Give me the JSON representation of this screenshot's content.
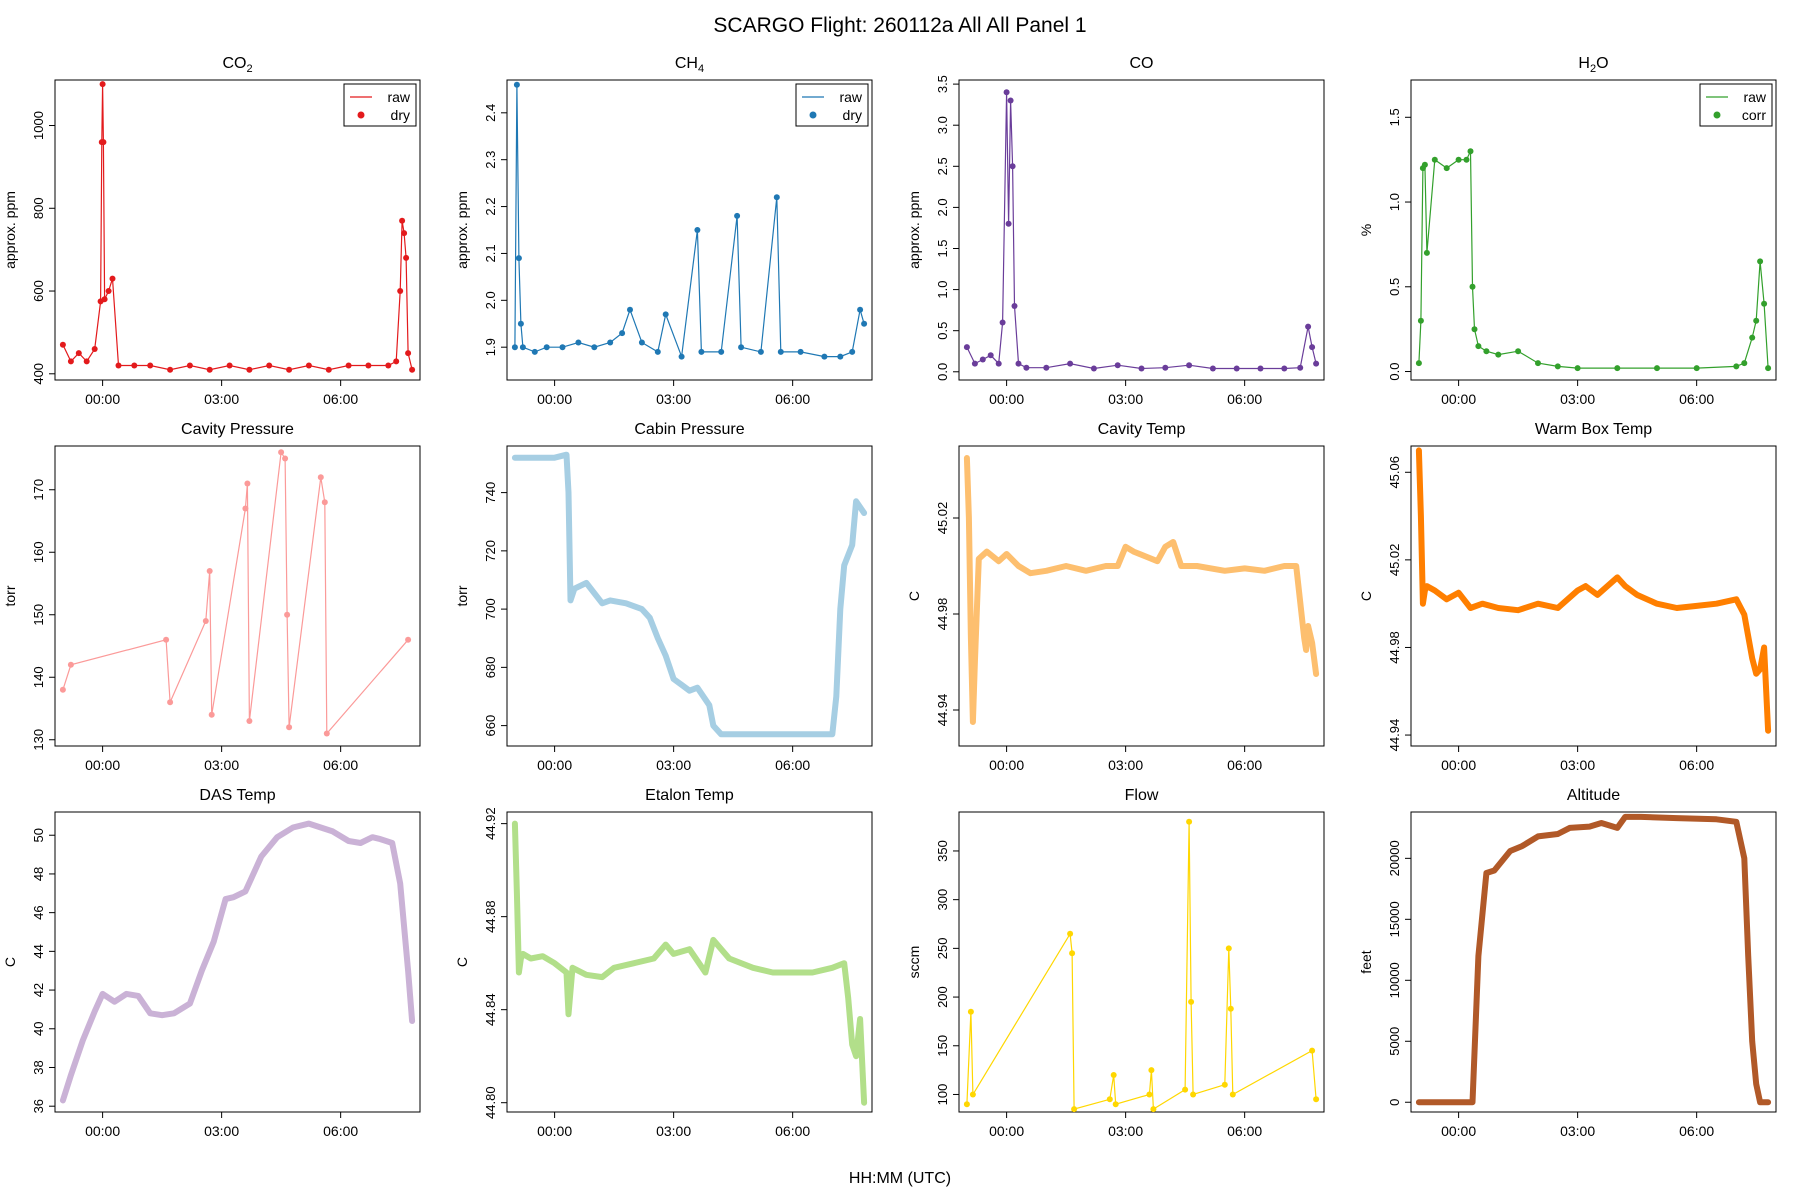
{
  "figure": {
    "title": "SCARGO Flight: 260112a  All All  Panel 1",
    "xlabel": "HH:MM (UTC)"
  },
  "chart_data": [
    {
      "id": "co2",
      "type": "scatter",
      "title": "CO",
      "title_sub": "2",
      "ylabel": "approx. ppm",
      "color": "#E31A1C",
      "ylim": [
        385,
        1110
      ],
      "yticks": [
        400,
        600,
        800,
        1000
      ],
      "xticks": [
        "00:00",
        "03:00",
        "06:00"
      ],
      "xlim": [
        -1.2,
        8.0
      ],
      "legend": [
        "raw",
        "dry"
      ],
      "x": [
        -1.0,
        -0.8,
        -0.6,
        -0.4,
        -0.2,
        -0.05,
        -0.02,
        0.0,
        0.02,
        0.05,
        0.15,
        0.25,
        0.4,
        0.8,
        1.2,
        1.7,
        2.2,
        2.7,
        3.2,
        3.7,
        4.2,
        4.7,
        5.2,
        5.7,
        6.2,
        6.7,
        7.2,
        7.4,
        7.5,
        7.55,
        7.6,
        7.65,
        7.7,
        7.8
      ],
      "y": [
        470,
        430,
        450,
        430,
        460,
        575,
        960,
        1100,
        960,
        580,
        600,
        630,
        420,
        420,
        420,
        410,
        420,
        410,
        420,
        410,
        420,
        410,
        420,
        410,
        420,
        420,
        420,
        430,
        600,
        770,
        740,
        680,
        450,
        410
      ]
    },
    {
      "id": "ch4",
      "type": "scatter",
      "title": "CH",
      "title_sub": "4",
      "ylabel": "approx. ppm",
      "color": "#1F78B4",
      "ylim": [
        1.83,
        2.47
      ],
      "yticks": [
        1.9,
        2.0,
        2.1,
        2.2,
        2.3,
        2.4
      ],
      "xticks": [
        "00:00",
        "03:00",
        "06:00"
      ],
      "xlim": [
        -1.2,
        8.0
      ],
      "legend": [
        "raw",
        "dry"
      ],
      "x": [
        -1.0,
        -0.95,
        -0.9,
        -0.85,
        -0.8,
        -0.5,
        -0.2,
        0.2,
        0.6,
        1.0,
        1.4,
        1.7,
        1.9,
        2.2,
        2.6,
        2.8,
        3.2,
        3.6,
        3.7,
        4.2,
        4.6,
        4.7,
        5.2,
        5.6,
        5.7,
        6.2,
        6.8,
        7.2,
        7.5,
        7.7,
        7.8
      ],
      "y": [
        1.9,
        2.46,
        2.09,
        1.95,
        1.9,
        1.89,
        1.9,
        1.9,
        1.91,
        1.9,
        1.91,
        1.93,
        1.98,
        1.91,
        1.89,
        1.97,
        1.88,
        2.15,
        1.89,
        1.89,
        2.18,
        1.9,
        1.89,
        2.22,
        1.89,
        1.89,
        1.88,
        1.88,
        1.89,
        1.98,
        1.95
      ]
    },
    {
      "id": "co",
      "type": "scatter",
      "title": "CO",
      "title_sub": "",
      "ylabel": "approx. ppm",
      "color": "#6A3D9A",
      "ylim": [
        -0.1,
        3.55
      ],
      "yticks": [
        0.0,
        0.5,
        1.0,
        1.5,
        2.0,
        2.5,
        3.0,
        3.5
      ],
      "xticks": [
        "00:00",
        "03:00",
        "06:00"
      ],
      "xlim": [
        -1.2,
        8.0
      ],
      "legend": [],
      "x": [
        -1.0,
        -0.8,
        -0.6,
        -0.4,
        -0.2,
        -0.1,
        0.0,
        0.05,
        0.1,
        0.15,
        0.2,
        0.3,
        0.5,
        1.0,
        1.6,
        2.2,
        2.8,
        3.4,
        4.0,
        4.6,
        5.2,
        5.8,
        6.4,
        7.0,
        7.4,
        7.6,
        7.7,
        7.8
      ],
      "y": [
        0.3,
        0.1,
        0.15,
        0.2,
        0.1,
        0.6,
        3.4,
        1.8,
        3.3,
        2.5,
        0.8,
        0.1,
        0.05,
        0.05,
        0.1,
        0.04,
        0.08,
        0.04,
        0.05,
        0.08,
        0.04,
        0.04,
        0.04,
        0.04,
        0.05,
        0.55,
        0.3,
        0.1
      ]
    },
    {
      "id": "h2o",
      "type": "scatter",
      "title": "H",
      "title_sub": "2",
      "title_tail": "O",
      "ylabel": "%",
      "color": "#33A02C",
      "ylim": [
        -0.05,
        1.72
      ],
      "yticks": [
        0.0,
        0.5,
        1.0,
        1.5
      ],
      "xticks": [
        "00:00",
        "03:00",
        "06:00"
      ],
      "xlim": [
        -1.2,
        8.0
      ],
      "legend": [
        "raw",
        "corr"
      ],
      "x": [
        -1.0,
        -0.95,
        -0.9,
        -0.85,
        -0.8,
        -0.6,
        -0.3,
        0.0,
        0.2,
        0.3,
        0.35,
        0.4,
        0.5,
        0.7,
        1.0,
        1.5,
        2.0,
        2.5,
        3.0,
        4.0,
        5.0,
        6.0,
        7.0,
        7.2,
        7.4,
        7.5,
        7.6,
        7.7,
        7.8
      ],
      "y": [
        0.05,
        0.3,
        1.2,
        1.22,
        0.7,
        1.25,
        1.2,
        1.25,
        1.25,
        1.3,
        0.5,
        0.25,
        0.15,
        0.12,
        0.1,
        0.12,
        0.05,
        0.03,
        0.02,
        0.02,
        0.02,
        0.02,
        0.03,
        0.05,
        0.2,
        0.3,
        0.65,
        0.4,
        0.02
      ]
    },
    {
      "id": "cavp",
      "type": "scatter",
      "title": "Cavity Pressure",
      "title_sub": "",
      "ylabel": "torr",
      "color": "#FB9A99",
      "ylim": [
        129,
        177
      ],
      "yticks": [
        130,
        140,
        150,
        160,
        170
      ],
      "xticks": [
        "00:00",
        "03:00",
        "06:00"
      ],
      "xlim": [
        -1.2,
        8.0
      ],
      "legend": [],
      "x": [
        -1.0,
        -0.8,
        1.6,
        1.7,
        2.6,
        2.7,
        2.75,
        3.6,
        3.65,
        3.7,
        4.5,
        4.6,
        4.65,
        4.7,
        5.5,
        5.6,
        5.65,
        7.7
      ],
      "y": [
        138,
        142,
        146,
        136,
        149,
        157,
        134,
        167,
        171,
        133,
        176,
        175,
        150,
        132,
        172,
        168,
        131,
        146
      ]
    },
    {
      "id": "cabp",
      "type": "line",
      "title": "Cabin Pressure",
      "title_sub": "",
      "ylabel": "torr",
      "color": "#A6CEE3",
      "ylim": [
        653,
        756
      ],
      "yticks": [
        660,
        680,
        700,
        720,
        740
      ],
      "xticks": [
        "00:00",
        "03:00",
        "06:00"
      ],
      "xlim": [
        -1.2,
        8.0
      ],
      "legend": [],
      "x": [
        -1.0,
        0.0,
        0.3,
        0.35,
        0.4,
        0.5,
        0.8,
        1.2,
        1.4,
        1.8,
        2.2,
        2.4,
        2.6,
        2.8,
        3.0,
        3.2,
        3.4,
        3.6,
        3.9,
        4.0,
        4.2,
        5.0,
        6.0,
        7.0,
        7.1,
        7.2,
        7.3,
        7.5,
        7.6,
        7.8
      ],
      "y": [
        752,
        752,
        753,
        740,
        703,
        707,
        709,
        702,
        703,
        702,
        700,
        697,
        690,
        684,
        676,
        674,
        672,
        673,
        667,
        660,
        657,
        657,
        657,
        657,
        670,
        700,
        715,
        722,
        737,
        733
      ]
    },
    {
      "id": "cavt",
      "type": "line",
      "title": "Cavity Temp",
      "title_sub": "",
      "ylabel": "C",
      "color": "#FDBF6F",
      "ylim": [
        44.925,
        45.05
      ],
      "yticks": [
        44.94,
        44.98,
        45.02
      ],
      "xticks": [
        "00:00",
        "03:00",
        "06:00"
      ],
      "xlim": [
        -1.2,
        8.0
      ],
      "legend": [],
      "x": [
        -1.0,
        -0.95,
        -0.9,
        -0.85,
        -0.8,
        -0.7,
        -0.5,
        -0.2,
        0.0,
        0.3,
        0.6,
        1.0,
        1.5,
        2.0,
        2.5,
        2.8,
        3.0,
        3.2,
        3.5,
        3.8,
        4.0,
        4.2,
        4.4,
        4.8,
        5.5,
        6.0,
        6.5,
        7.0,
        7.3,
        7.5,
        7.55,
        7.6,
        7.7,
        7.8
      ],
      "y": [
        45.045,
        45.02,
        44.97,
        44.935,
        44.96,
        45.003,
        45.006,
        45.002,
        45.005,
        45.0,
        44.997,
        44.998,
        45.0,
        44.998,
        45.0,
        45.0,
        45.008,
        45.006,
        45.004,
        45.002,
        45.008,
        45.01,
        45.0,
        45.0,
        44.998,
        44.999,
        44.998,
        45.0,
        45.0,
        44.97,
        44.965,
        44.975,
        44.968,
        44.955
      ]
    },
    {
      "id": "wbt",
      "type": "line",
      "title": "Warm Box Temp",
      "title_sub": "",
      "ylabel": "C",
      "color": "#FF7F00",
      "ylim": [
        44.935,
        45.072
      ],
      "yticks": [
        44.94,
        44.98,
        45.02,
        45.06
      ],
      "xticks": [
        "00:00",
        "03:00",
        "06:00"
      ],
      "xlim": [
        -1.2,
        8.0
      ],
      "legend": [],
      "x": [
        -1.0,
        -0.95,
        -0.9,
        -0.85,
        -0.8,
        -0.6,
        -0.3,
        0.0,
        0.3,
        0.6,
        1.0,
        1.5,
        2.0,
        2.5,
        3.0,
        3.2,
        3.5,
        4.0,
        4.2,
        4.5,
        5.0,
        5.5,
        6.0,
        6.5,
        7.0,
        7.2,
        7.4,
        7.5,
        7.6,
        7.7,
        7.8
      ],
      "y": [
        45.07,
        45.04,
        45.0,
        45.006,
        45.008,
        45.006,
        45.002,
        45.005,
        44.998,
        45.0,
        44.998,
        44.997,
        45.0,
        44.998,
        45.006,
        45.008,
        45.004,
        45.012,
        45.008,
        45.004,
        45.0,
        44.998,
        44.999,
        45.0,
        45.002,
        44.995,
        44.975,
        44.968,
        44.97,
        44.98,
        44.942
      ]
    },
    {
      "id": "dast",
      "type": "line",
      "title": "DAS Temp",
      "title_sub": "",
      "ylabel": "C",
      "color": "#CAB2D6",
      "ylim": [
        35.7,
        51.2
      ],
      "yticks": [
        36,
        38,
        40,
        42,
        44,
        46,
        48,
        50
      ],
      "xticks": [
        "00:00",
        "03:00",
        "06:00"
      ],
      "xlim": [
        -1.2,
        8.0
      ],
      "legend": [],
      "x": [
        -1.0,
        -0.8,
        -0.5,
        -0.2,
        0.0,
        0.3,
        0.6,
        0.9,
        1.2,
        1.5,
        1.8,
        2.2,
        2.5,
        2.8,
        3.1,
        3.3,
        3.6,
        4.0,
        4.4,
        4.8,
        5.2,
        5.5,
        5.8,
        6.2,
        6.5,
        6.8,
        7.0,
        7.3,
        7.5,
        7.7,
        7.8
      ],
      "y": [
        36.3,
        37.6,
        39.4,
        40.9,
        41.8,
        41.4,
        41.8,
        41.7,
        40.8,
        40.7,
        40.8,
        41.3,
        43.0,
        44.5,
        46.7,
        46.8,
        47.1,
        48.9,
        49.9,
        50.4,
        50.6,
        50.4,
        50.2,
        49.7,
        49.6,
        49.9,
        49.8,
        49.6,
        47.5,
        43.0,
        40.4
      ]
    },
    {
      "id": "etat",
      "type": "line",
      "title": "Etalon Temp",
      "title_sub": "",
      "ylabel": "C",
      "color": "#B2DF8A",
      "ylim": [
        44.796,
        44.925
      ],
      "yticks": [
        44.8,
        44.84,
        44.88,
        44.92
      ],
      "xticks": [
        "00:00",
        "03:00",
        "06:00"
      ],
      "xlim": [
        -1.2,
        8.0
      ],
      "legend": [],
      "x": [
        -1.0,
        -0.95,
        -0.9,
        -0.85,
        -0.8,
        -0.6,
        -0.3,
        0.0,
        0.3,
        0.35,
        0.45,
        0.8,
        1.2,
        1.5,
        2.0,
        2.5,
        2.8,
        3.0,
        3.4,
        3.8,
        4.0,
        4.2,
        4.4,
        5.0,
        5.5,
        6.0,
        6.5,
        7.0,
        7.3,
        7.4,
        7.5,
        7.6,
        7.7,
        7.8
      ],
      "y": [
        44.92,
        44.89,
        44.856,
        44.862,
        44.864,
        44.862,
        44.863,
        44.86,
        44.856,
        44.838,
        44.858,
        44.855,
        44.854,
        44.858,
        44.86,
        44.862,
        44.868,
        44.864,
        44.866,
        44.856,
        44.87,
        44.866,
        44.862,
        44.858,
        44.856,
        44.856,
        44.856,
        44.858,
        44.86,
        44.845,
        44.825,
        44.82,
        44.836,
        44.8
      ]
    },
    {
      "id": "flow",
      "type": "scatter",
      "title": "Flow",
      "title_sub": "",
      "ylabel": "sccm",
      "color": "#FFD700",
      "ylim": [
        82,
        390
      ],
      "yticks": [
        100,
        150,
        200,
        250,
        300,
        350
      ],
      "xticks": [
        "00:00",
        "03:00",
        "06:00"
      ],
      "xlim": [
        -1.2,
        8.0
      ],
      "legend": [],
      "x": [
        -1.0,
        -0.9,
        -0.85,
        1.6,
        1.65,
        1.7,
        2.6,
        2.7,
        2.75,
        3.6,
        3.65,
        3.7,
        4.5,
        4.6,
        4.65,
        4.7,
        5.5,
        5.6,
        5.65,
        5.7,
        7.7,
        7.8
      ],
      "y": [
        90,
        185,
        100,
        265,
        245,
        85,
        95,
        120,
        90,
        100,
        125,
        85,
        105,
        380,
        195,
        100,
        110,
        250,
        188,
        100,
        145,
        95
      ]
    },
    {
      "id": "alt",
      "type": "line",
      "title": "Altitude",
      "title_sub": "",
      "ylabel": "feet",
      "color": "#B15928",
      "ylim": [
        -800,
        23800
      ],
      "yticks": [
        0,
        5000,
        10000,
        15000,
        20000
      ],
      "xticks": [
        "00:00",
        "03:00",
        "06:00"
      ],
      "xlim": [
        -1.2,
        8.0
      ],
      "legend": [],
      "x": [
        -1.0,
        0.0,
        0.35,
        0.5,
        0.7,
        0.9,
        1.3,
        1.6,
        2.0,
        2.5,
        2.8,
        3.3,
        3.6,
        4.0,
        4.2,
        4.6,
        5.5,
        6.5,
        7.0,
        7.2,
        7.3,
        7.4,
        7.5,
        7.6,
        7.8
      ],
      "y": [
        0,
        0,
        0,
        12000,
        18800,
        19000,
        20600,
        21000,
        21800,
        22000,
        22500,
        22600,
        22900,
        22500,
        23400,
        23400,
        23300,
        23200,
        23000,
        20000,
        12000,
        5000,
        1500,
        0,
        0
      ]
    }
  ]
}
